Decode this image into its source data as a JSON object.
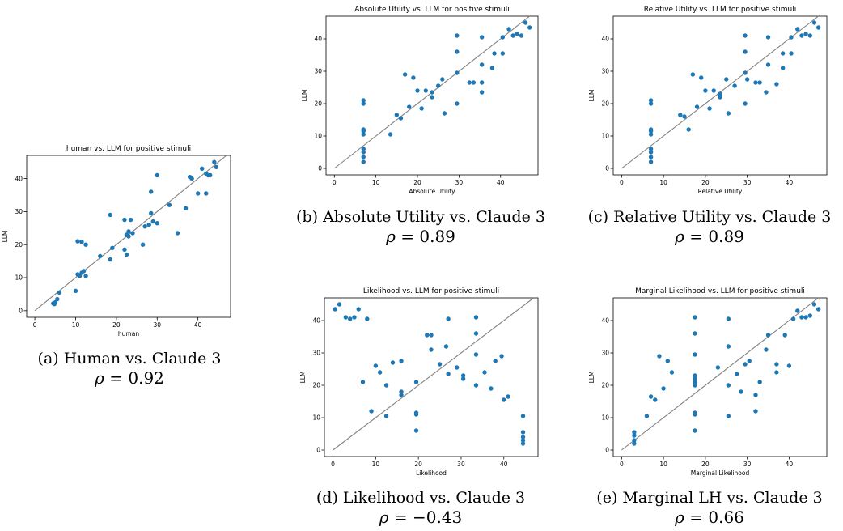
{
  "colors": {
    "points": "#1f77b4",
    "reference_line": "#808080"
  },
  "panels": [
    {
      "id": "a",
      "caption": "(a) Human vs. Claude 3",
      "rho_symbol": "ρ",
      "rho_equals": "=",
      "rho_value": "0.92"
    },
    {
      "id": "b",
      "caption": "(b) Absolute Utility vs. Claude 3",
      "rho_symbol": "ρ",
      "rho_equals": "=",
      "rho_value": "0.89"
    },
    {
      "id": "c",
      "caption": "(c) Relative Utility vs. Claude 3",
      "rho_symbol": "ρ",
      "rho_equals": "=",
      "rho_value": "0.89"
    },
    {
      "id": "d",
      "caption": "(d) Likelihood vs. Claude 3",
      "rho_symbol": "ρ",
      "rho_equals": "=",
      "rho_value": "−0.43"
    },
    {
      "id": "e",
      "caption": "(e) Marginal LH vs. Claude 3",
      "rho_symbol": "ρ",
      "rho_equals": "=",
      "rho_value": "0.66"
    }
  ],
  "chart_data": [
    {
      "type": "scatter",
      "title": "human vs. LLM for positive stimuli",
      "xlabel": "human",
      "ylabel": "LLM",
      "xlim": [
        -2,
        48
      ],
      "ylim": [
        -2,
        47
      ],
      "xticks": [
        0,
        10,
        20,
        30,
        40
      ],
      "yticks": [
        0,
        10,
        20,
        30,
        40
      ],
      "reference_line": [
        [
          0,
          0
        ],
        [
          47,
          47
        ]
      ],
      "points": [
        [
          4.5,
          2.2
        ],
        [
          5,
          2.5
        ],
        [
          4.8,
          2
        ],
        [
          5.5,
          3.5
        ],
        [
          6,
          5.5
        ],
        [
          10,
          6
        ],
        [
          10.5,
          11
        ],
        [
          11,
          10.5
        ],
        [
          11.5,
          11.5
        ],
        [
          12,
          12
        ],
        [
          12.5,
          10.5
        ],
        [
          10.5,
          21
        ],
        [
          11.5,
          20.8
        ],
        [
          12.5,
          20
        ],
        [
          16,
          16.5
        ],
        [
          19,
          19
        ],
        [
          18.5,
          15.5
        ],
        [
          18.5,
          29
        ],
        [
          22,
          27.5
        ],
        [
          23.5,
          27.5
        ],
        [
          22,
          18.5
        ],
        [
          22.5,
          17
        ],
        [
          23,
          24
        ],
        [
          23,
          22.5
        ],
        [
          24,
          23.5
        ],
        [
          22.5,
          23
        ],
        [
          26.5,
          20
        ],
        [
          27,
          25.5
        ],
        [
          28,
          26
        ],
        [
          29,
          27
        ],
        [
          30,
          26.5
        ],
        [
          28.5,
          29.5
        ],
        [
          28.5,
          36
        ],
        [
          30,
          41
        ],
        [
          33,
          32
        ],
        [
          35,
          23.5
        ],
        [
          37,
          31
        ],
        [
          38,
          40.5
        ],
        [
          38.5,
          40
        ],
        [
          40,
          35.5
        ],
        [
          41,
          43
        ],
        [
          42,
          35.5
        ],
        [
          42,
          41.5
        ],
        [
          42.5,
          41
        ],
        [
          43,
          41
        ],
        [
          44,
          45
        ],
        [
          44.5,
          43.5
        ]
      ]
    },
    {
      "type": "scatter",
      "title": "Absolute Utility vs. LLM for positive stimuli",
      "xlabel": "Absolute Utility",
      "ylabel": "LLM",
      "xlim": [
        -2,
        49
      ],
      "ylim": [
        -2,
        47
      ],
      "xticks": [
        0,
        10,
        20,
        30,
        40
      ],
      "yticks": [
        0,
        10,
        20,
        30,
        40
      ],
      "reference_line": [
        [
          0,
          0
        ],
        [
          47,
          47
        ]
      ],
      "points": [
        [
          7,
          2
        ],
        [
          7,
          3.5
        ],
        [
          7,
          5
        ],
        [
          7,
          6
        ],
        [
          7,
          10.5
        ],
        [
          7,
          11.5
        ],
        [
          7,
          12
        ],
        [
          7,
          20
        ],
        [
          7,
          21
        ],
        [
          13.5,
          10.5
        ],
        [
          15,
          16.5
        ],
        [
          16,
          15.5
        ],
        [
          17,
          29
        ],
        [
          18,
          19
        ],
        [
          19,
          28
        ],
        [
          20,
          24
        ],
        [
          21,
          18.5
        ],
        [
          22,
          24
        ],
        [
          23.5,
          22
        ],
        [
          23.5,
          23.5
        ],
        [
          25,
          25.5
        ],
        [
          26,
          27.5
        ],
        [
          26.5,
          17
        ],
        [
          29.5,
          20
        ],
        [
          29.5,
          29.5
        ],
        [
          29.5,
          36
        ],
        [
          29.5,
          41
        ],
        [
          32.5,
          26.5
        ],
        [
          33.5,
          26.5
        ],
        [
          35.5,
          23.5
        ],
        [
          35.5,
          26.5
        ],
        [
          35.5,
          32
        ],
        [
          35.5,
          40.5
        ],
        [
          38,
          31
        ],
        [
          38.5,
          35.5
        ],
        [
          40.5,
          35.5
        ],
        [
          40.5,
          40.5
        ],
        [
          42,
          43
        ],
        [
          43,
          41
        ],
        [
          44,
          41.5
        ],
        [
          45,
          41
        ],
        [
          46,
          45
        ],
        [
          47,
          43.5
        ]
      ]
    },
    {
      "type": "scatter",
      "title": "Relative Utility vs. LLM for positive stimuli",
      "xlabel": "Relative Utility",
      "ylabel": "LLM",
      "xlim": [
        -2,
        49
      ],
      "ylim": [
        -2,
        47
      ],
      "xticks": [
        0,
        10,
        20,
        30,
        40
      ],
      "yticks": [
        0,
        10,
        20,
        30,
        40
      ],
      "reference_line": [
        [
          0,
          0
        ],
        [
          47,
          47
        ]
      ],
      "points": [
        [
          7,
          2
        ],
        [
          7,
          3.5
        ],
        [
          7,
          5
        ],
        [
          7,
          6
        ],
        [
          7,
          10.5
        ],
        [
          7,
          11.5
        ],
        [
          7,
          12
        ],
        [
          7,
          20
        ],
        [
          7,
          21
        ],
        [
          14,
          16.5
        ],
        [
          15,
          16
        ],
        [
          16,
          12
        ],
        [
          17,
          29
        ],
        [
          18,
          19
        ],
        [
          19,
          28
        ],
        [
          20,
          24
        ],
        [
          21,
          18.5
        ],
        [
          22,
          24
        ],
        [
          23.5,
          22
        ],
        [
          23.5,
          23
        ],
        [
          25,
          27.5
        ],
        [
          25.5,
          17
        ],
        [
          27,
          25.5
        ],
        [
          29.5,
          20
        ],
        [
          29.5,
          29.5
        ],
        [
          29.5,
          36
        ],
        [
          29.5,
          41
        ],
        [
          30,
          27.5
        ],
        [
          32,
          26.5
        ],
        [
          33,
          26.5
        ],
        [
          34.5,
          23.5
        ],
        [
          35,
          32
        ],
        [
          35,
          40.5
        ],
        [
          37,
          26
        ],
        [
          38.5,
          31
        ],
        [
          38.5,
          35.5
        ],
        [
          40.5,
          35.5
        ],
        [
          40.5,
          40.5
        ],
        [
          42,
          43
        ],
        [
          43,
          41
        ],
        [
          44,
          41.5
        ],
        [
          45,
          41
        ],
        [
          46,
          45
        ],
        [
          47,
          43.5
        ]
      ]
    },
    {
      "type": "scatter",
      "title": "Likelihood vs. LLM for positive stimuli",
      "xlabel": "Likelihood",
      "ylabel": "LLM",
      "xlim": [
        -2,
        48
      ],
      "ylim": [
        -2,
        47
      ],
      "xticks": [
        0,
        10,
        20,
        30,
        40
      ],
      "yticks": [
        0,
        10,
        20,
        30,
        40
      ],
      "reference_line": [
        [
          0,
          0
        ],
        [
          47,
          47
        ]
      ],
      "points": [
        [
          0.5,
          43.5
        ],
        [
          1.5,
          45
        ],
        [
          3,
          41
        ],
        [
          4,
          40.5
        ],
        [
          5,
          41
        ],
        [
          6,
          43.5
        ],
        [
          8,
          40.5
        ],
        [
          7,
          21
        ],
        [
          9,
          12
        ],
        [
          10,
          26
        ],
        [
          11,
          24
        ],
        [
          12.5,
          10.5
        ],
        [
          12.5,
          20
        ],
        [
          14,
          27
        ],
        [
          16,
          17
        ],
        [
          16,
          18
        ],
        [
          16,
          27.5
        ],
        [
          19.5,
          21
        ],
        [
          19.5,
          11
        ],
        [
          19.5,
          11.5
        ],
        [
          19.5,
          6
        ],
        [
          22,
          35.5
        ],
        [
          23,
          35.5
        ],
        [
          23,
          31
        ],
        [
          25,
          26.5
        ],
        [
          26.5,
          32
        ],
        [
          27,
          23.5
        ],
        [
          27,
          40.5
        ],
        [
          29,
          25.5
        ],
        [
          30.5,
          22
        ],
        [
          30.5,
          23
        ],
        [
          33.5,
          20
        ],
        [
          33.5,
          29.5
        ],
        [
          33.5,
          36
        ],
        [
          33.5,
          41
        ],
        [
          35.5,
          24
        ],
        [
          37,
          19
        ],
        [
          38,
          27.5
        ],
        [
          39.5,
          29
        ],
        [
          40,
          15.5
        ],
        [
          41,
          16.5
        ],
        [
          44.5,
          10.5
        ],
        [
          44.5,
          5.5
        ],
        [
          44.5,
          4
        ],
        [
          44.5,
          3
        ],
        [
          44.5,
          2
        ]
      ]
    },
    {
      "type": "scatter",
      "title": "Marginal Likelihood vs. LLM for positive stimuli",
      "xlabel": "Marginal Likelihood",
      "ylabel": "LLM",
      "xlim": [
        -2,
        49
      ],
      "ylim": [
        -2,
        47
      ],
      "xticks": [
        0,
        10,
        20,
        30,
        40
      ],
      "yticks": [
        0,
        10,
        20,
        30,
        40
      ],
      "reference_line": [
        [
          0,
          0
        ],
        [
          47,
          47
        ]
      ],
      "points": [
        [
          3,
          2
        ],
        [
          3,
          3
        ],
        [
          3,
          4.5
        ],
        [
          3,
          5.5
        ],
        [
          6,
          10.5
        ],
        [
          7,
          16.5
        ],
        [
          8,
          15.5
        ],
        [
          9,
          29
        ],
        [
          10,
          19
        ],
        [
          11,
          27.5
        ],
        [
          12,
          24
        ],
        [
          17.5,
          6
        ],
        [
          17.5,
          11
        ],
        [
          17.5,
          11.5
        ],
        [
          17.5,
          20
        ],
        [
          17.5,
          21
        ],
        [
          17.5,
          22
        ],
        [
          17.5,
          23
        ],
        [
          17.5,
          29.5
        ],
        [
          17.5,
          36
        ],
        [
          17.5,
          41
        ],
        [
          23,
          25.5
        ],
        [
          25.5,
          10.5
        ],
        [
          25.5,
          20
        ],
        [
          25.5,
          32
        ],
        [
          25.5,
          40.5
        ],
        [
          27.5,
          23.5
        ],
        [
          28.5,
          18
        ],
        [
          29.5,
          26.5
        ],
        [
          30.5,
          27.5
        ],
        [
          32,
          12
        ],
        [
          32,
          17
        ],
        [
          33,
          21
        ],
        [
          34.5,
          31
        ],
        [
          35,
          35.5
        ],
        [
          37,
          24
        ],
        [
          37,
          26.5
        ],
        [
          39,
          35.5
        ],
        [
          40,
          26
        ],
        [
          41,
          40.5
        ],
        [
          42,
          43
        ],
        [
          43,
          41
        ],
        [
          44,
          41
        ],
        [
          45,
          41.5
        ],
        [
          46,
          45
        ],
        [
          47,
          43.5
        ]
      ]
    }
  ]
}
